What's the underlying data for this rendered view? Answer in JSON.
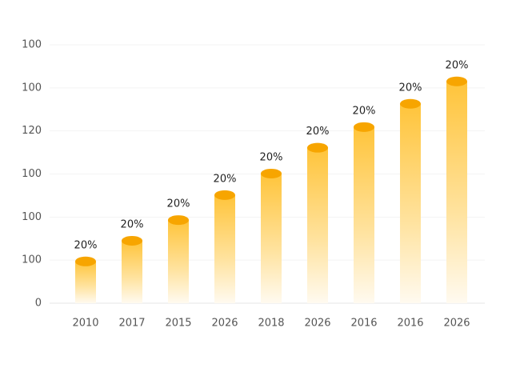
{
  "chart_data": {
    "type": "bar",
    "categories": [
      "2010",
      "2017",
      "2015",
      "2026",
      "2018",
      "2026",
      "2016",
      "2016",
      "2026"
    ],
    "values": [
      0.97,
      1.45,
      1.93,
      2.51,
      3.01,
      3.61,
      4.09,
      4.63,
      5.15
    ],
    "labels": [
      "20%",
      "20%",
      "20%",
      "20%",
      "20%",
      "20%",
      "20%",
      "20%",
      "20%"
    ],
    "color": "#f7a500",
    "ylim": [
      0,
      6
    ],
    "yticks": [
      0,
      {
        "value": 1,
        "label": "100"
      },
      {
        "value": 2,
        "label": "100"
      },
      {
        "value": 3,
        "label": "100"
      },
      {
        "value": 4,
        "label": "120"
      },
      {
        "value": 5,
        "label": "100"
      },
      {
        "value": 6,
        "label": "100"
      }
    ],
    "grid": true
  }
}
